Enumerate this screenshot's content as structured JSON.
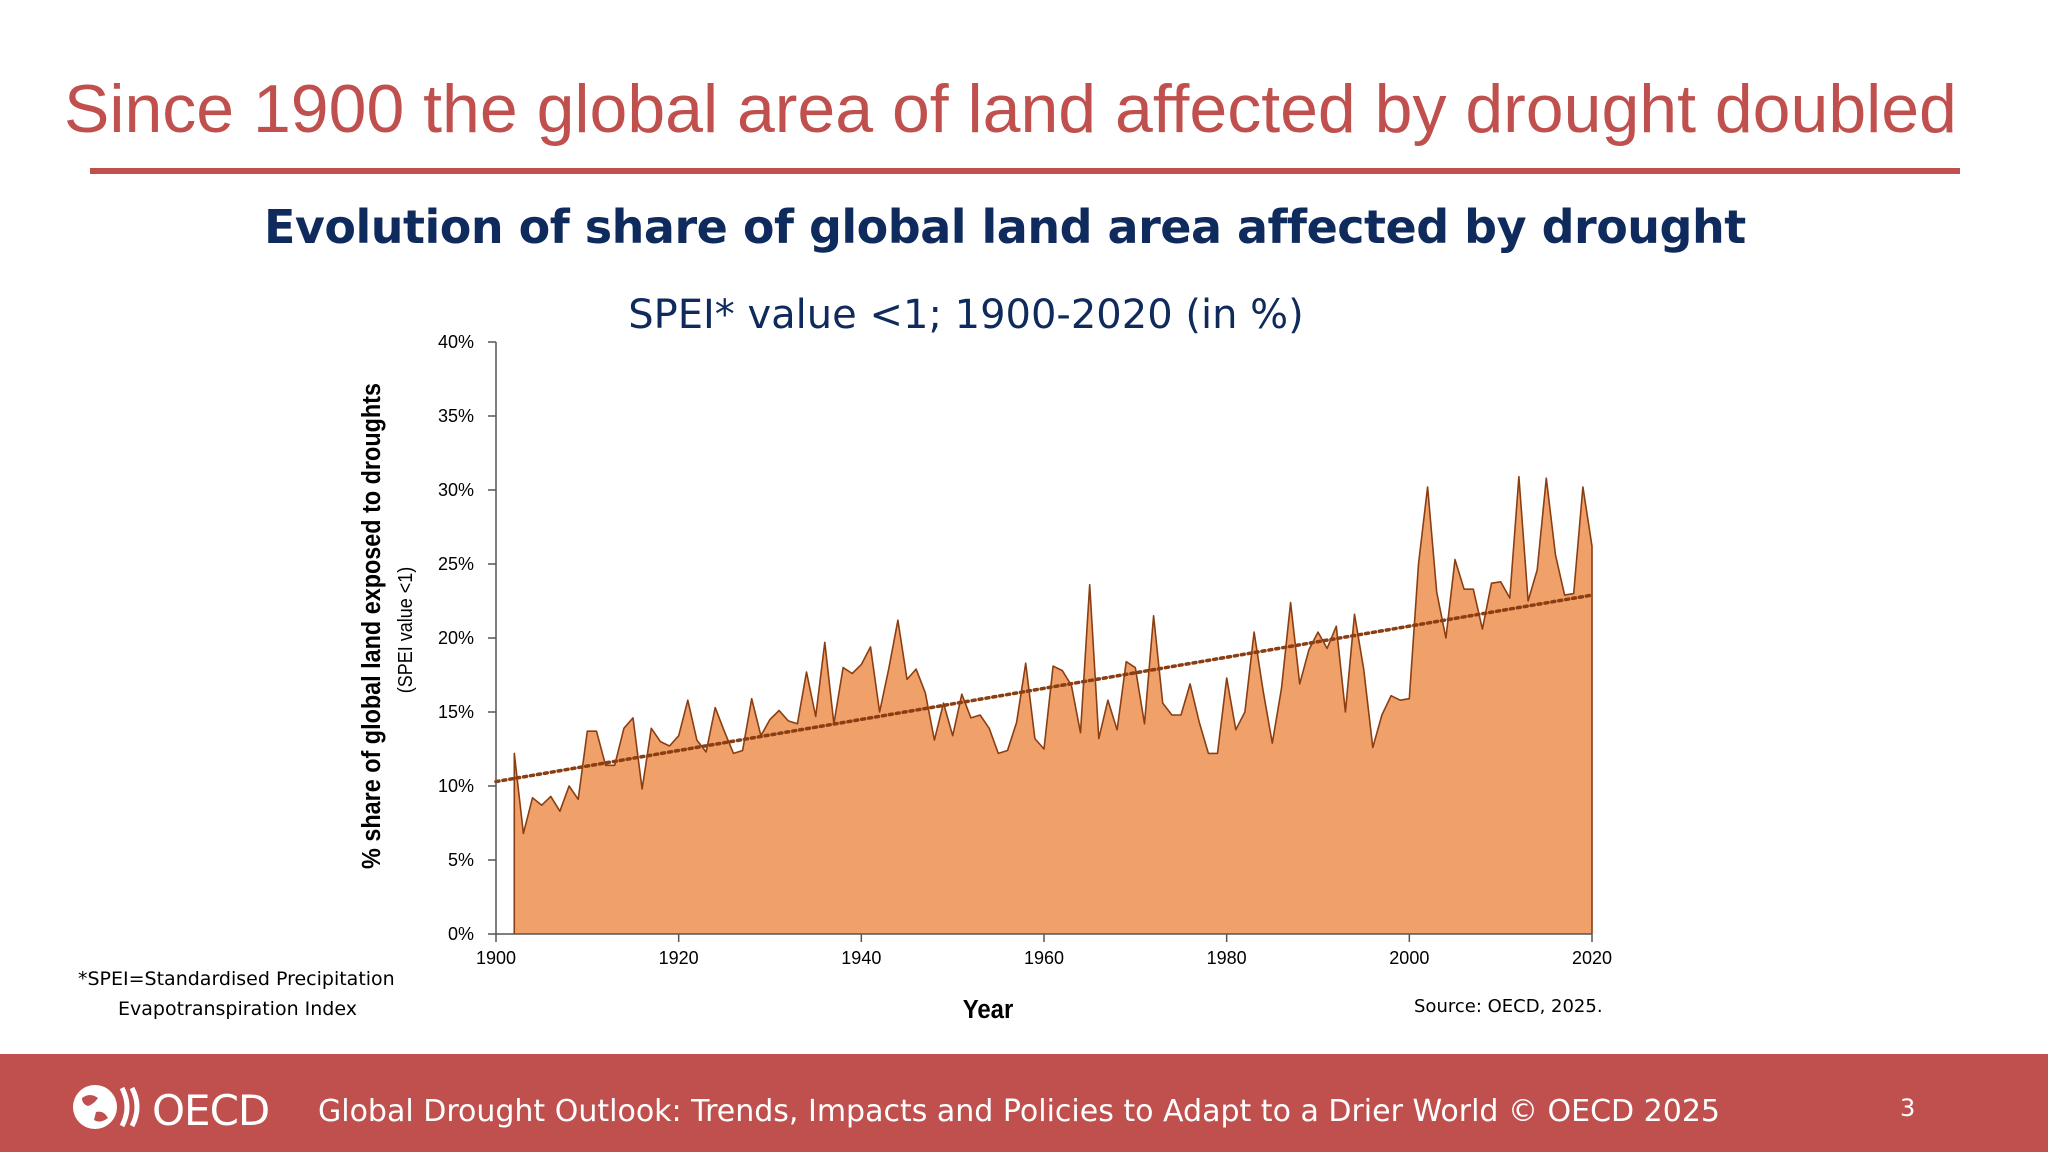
{
  "slide": {
    "title": "Since 1900 the global area of land affected by drought doubled",
    "page_number": "3"
  },
  "footer": {
    "logo_text": "OECD",
    "text": "Global Drought Outlook: Trends, Impacts and Policies to Adapt to a Drier World  © OECD 2025"
  },
  "footnote": {
    "line1": "*SPEI=Standardised Precipitation",
    "line2": "Evapotranspiration Index"
  },
  "source": "Source: OECD, 2025.",
  "colors": {
    "title_red": "#c0504d",
    "navy": "#0f2a5c",
    "area_fill": "#f0a16a",
    "area_line": "#8b3e12",
    "trend_line": "#8b3e12"
  },
  "chart_data": {
    "type": "area",
    "title": "Evolution of share of global land area affected by drought",
    "subtitle": "SPEI* value <1; 1900-2020 (in %)",
    "xlabel": "Year",
    "ylabel": "% share of global land exposed to droughts",
    "ylabel_sub": "(SPEI value <1)",
    "xlim": [
      1900,
      2020
    ],
    "ylim": [
      0,
      40
    ],
    "x_ticks": [
      "1900",
      "1920",
      "1940",
      "1960",
      "1980",
      "2000",
      "2020"
    ],
    "y_ticks": [
      "0%",
      "5%",
      "10%",
      "15%",
      "20%",
      "25%",
      "30%",
      "35%",
      "40%"
    ],
    "grid": false,
    "series": [
      {
        "x": [
          1902,
          1903,
          1904,
          1905,
          1906,
          1907,
          1908,
          1909,
          1910,
          1911,
          1912,
          1913,
          1914,
          1915,
          1916,
          1917,
          1918,
          1919,
          1920,
          1921,
          1922,
          1923,
          1924,
          1925,
          1926,
          1927,
          1928,
          1929,
          1930,
          1931,
          1932,
          1933,
          1934,
          1935,
          1936,
          1937,
          1938,
          1939,
          1940,
          1941,
          1942,
          1943,
          1944,
          1945,
          1946,
          1947,
          1948,
          1949,
          1950,
          1951,
          1952,
          1953,
          1954,
          1955,
          1956,
          1957,
          1958,
          1959,
          1960,
          1961,
          1962,
          1963,
          1964,
          1965,
          1966,
          1967,
          1968,
          1969,
          1970,
          1971,
          1972,
          1973,
          1974,
          1975,
          1976,
          1977,
          1978,
          1979,
          1980,
          1981,
          1982,
          1983,
          1984,
          1985,
          1986,
          1987,
          1988,
          1989,
          1990,
          1991,
          1992,
          1993,
          1994,
          1995,
          1996,
          1997,
          1998,
          1999,
          2000,
          2001,
          2002,
          2003,
          2004,
          2005,
          2006,
          2007,
          2008,
          2009,
          2010,
          2011,
          2012,
          2013,
          2014,
          2015,
          2016,
          2017,
          2018,
          2019,
          2020
        ],
        "values": [
          12.2,
          6.8,
          9.2,
          8.7,
          9.3,
          8.3,
          10.0,
          9.1,
          13.7,
          13.7,
          11.4,
          11.4,
          13.9,
          14.6,
          9.8,
          13.9,
          13.0,
          12.7,
          13.4,
          15.8,
          13.1,
          12.3,
          15.3,
          13.7,
          12.2,
          12.4,
          15.9,
          13.4,
          14.5,
          15.1,
          14.4,
          14.2,
          17.7,
          14.7,
          19.7,
          14.2,
          18.0,
          17.6,
          18.2,
          19.4,
          15.0,
          17.9,
          21.2,
          17.2,
          17.9,
          16.3,
          13.1,
          15.6,
          13.4,
          16.2,
          14.6,
          14.8,
          13.9,
          12.2,
          12.4,
          14.3,
          18.3,
          13.2,
          12.5,
          18.1,
          17.8,
          16.8,
          13.6,
          23.6,
          13.2,
          15.8,
          13.8,
          18.4,
          18.0,
          14.2,
          21.5,
          15.6,
          14.8,
          14.8,
          16.9,
          14.3,
          12.2,
          12.2,
          17.3,
          13.8,
          15.0,
          20.4,
          16.4,
          12.9,
          16.6,
          22.4,
          16.9,
          19.2,
          20.4,
          19.3,
          20.8,
          15.0,
          21.6,
          17.9,
          12.6,
          14.8,
          16.1,
          15.8,
          15.9,
          25.0,
          30.2,
          23.1,
          20.0,
          25.3,
          23.3,
          23.3,
          20.6,
          23.7,
          23.8,
          22.7,
          30.9,
          22.5,
          24.6,
          30.8,
          25.6,
          22.9,
          23.0,
          30.2,
          26.2
        ]
      }
    ],
    "trendline": {
      "x": [
        1900,
        2020
      ],
      "y": [
        10.3,
        22.9
      ]
    }
  }
}
